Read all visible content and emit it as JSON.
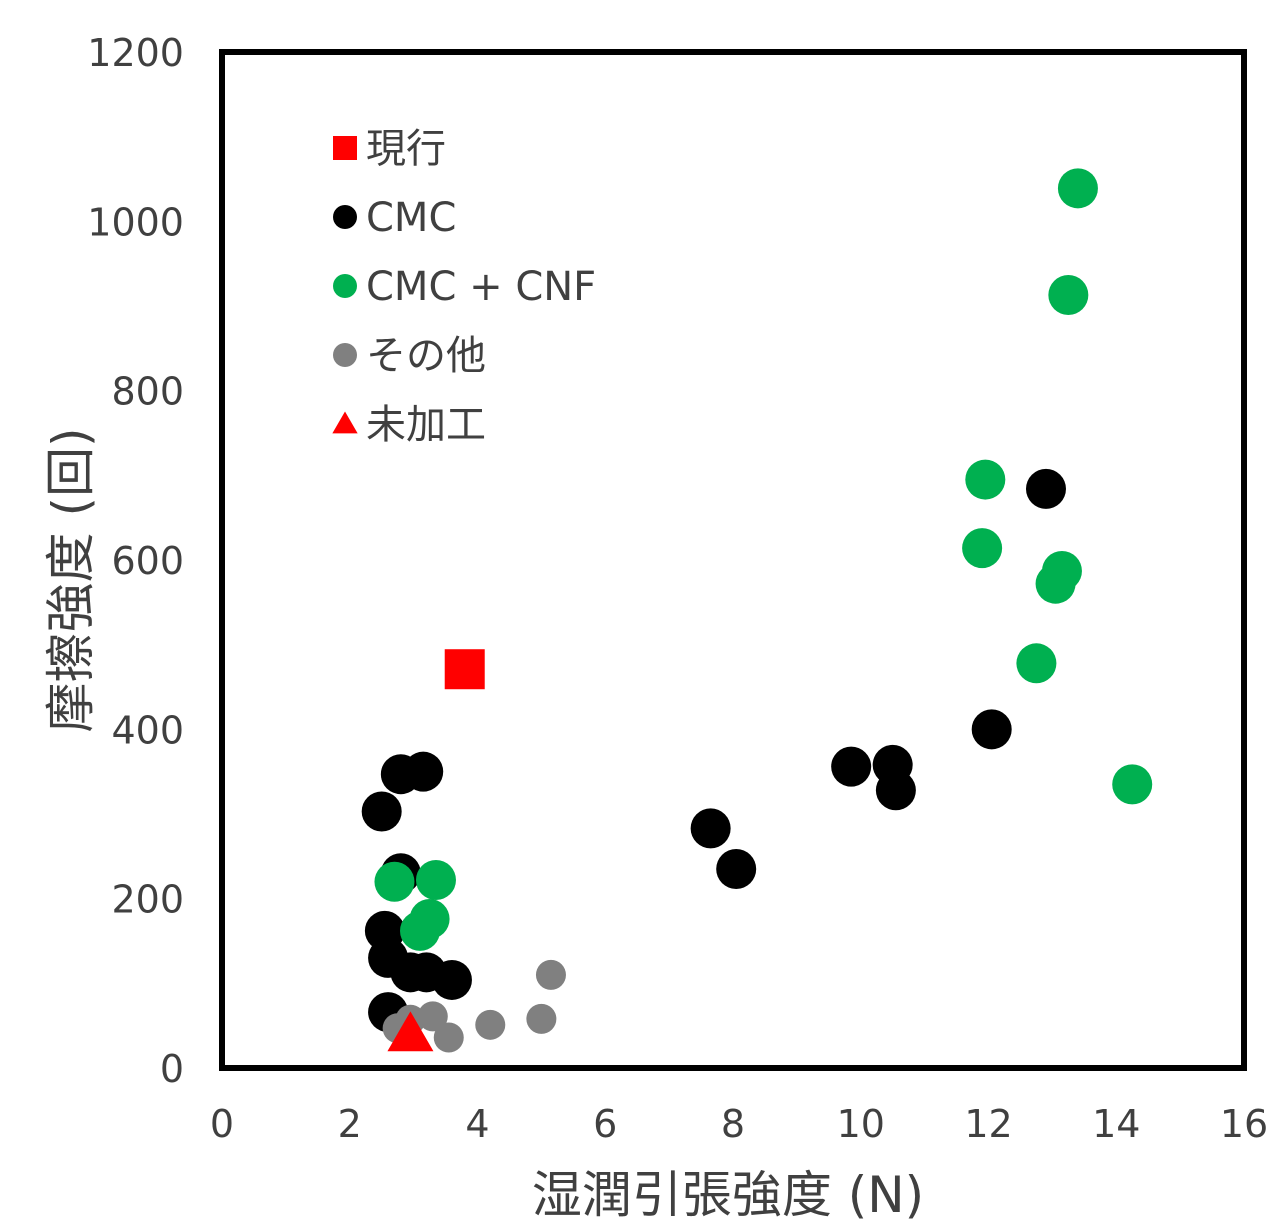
{
  "chart_data": {
    "type": "scatter",
    "xlabel": "湿潤引張強度 (N)",
    "ylabel": "摩擦強度 (回)",
    "xlim": [
      0,
      16
    ],
    "ylim": [
      0,
      1200
    ],
    "x_ticks": [
      0,
      2,
      4,
      6,
      8,
      10,
      12,
      14,
      16
    ],
    "y_ticks": [
      0,
      200,
      400,
      600,
      800,
      1000,
      1200
    ],
    "grid": false,
    "legend_position": "top-left",
    "series": [
      {
        "name": "CMC",
        "color": "#000000",
        "marker": "circle",
        "points": [
          {
            "x": 2.5,
            "y": 303
          },
          {
            "x": 2.8,
            "y": 347
          },
          {
            "x": 3.15,
            "y": 350
          },
          {
            "x": 2.8,
            "y": 230
          },
          {
            "x": 2.55,
            "y": 162
          },
          {
            "x": 2.6,
            "y": 130
          },
          {
            "x": 2.95,
            "y": 113
          },
          {
            "x": 3.2,
            "y": 113
          },
          {
            "x": 3.6,
            "y": 104
          },
          {
            "x": 2.6,
            "y": 66
          },
          {
            "x": 7.65,
            "y": 283
          },
          {
            "x": 8.05,
            "y": 235
          },
          {
            "x": 9.85,
            "y": 356
          },
          {
            "x": 10.5,
            "y": 358
          },
          {
            "x": 10.55,
            "y": 328
          },
          {
            "x": 12.05,
            "y": 400
          },
          {
            "x": 12.9,
            "y": 684
          }
        ]
      },
      {
        "name": "CMC + CNF",
        "color": "#00B050",
        "marker": "circle",
        "points": [
          {
            "x": 2.7,
            "y": 220
          },
          {
            "x": 3.35,
            "y": 222
          },
          {
            "x": 3.25,
            "y": 176
          },
          {
            "x": 3.1,
            "y": 162
          },
          {
            "x": 11.9,
            "y": 614
          },
          {
            "x": 11.95,
            "y": 695
          },
          {
            "x": 12.75,
            "y": 478
          },
          {
            "x": 13.05,
            "y": 572
          },
          {
            "x": 13.15,
            "y": 587
          },
          {
            "x": 13.25,
            "y": 913
          },
          {
            "x": 13.4,
            "y": 1039
          },
          {
            "x": 14.25,
            "y": 335
          }
        ]
      },
      {
        "name": "その他",
        "color": "#808080",
        "marker": "circle",
        "points": [
          {
            "x": 2.75,
            "y": 47
          },
          {
            "x": 2.95,
            "y": 57
          },
          {
            "x": 3.3,
            "y": 61
          },
          {
            "x": 3.55,
            "y": 36
          },
          {
            "x": 4.2,
            "y": 51
          },
          {
            "x": 5.0,
            "y": 58
          },
          {
            "x": 5.15,
            "y": 110
          }
        ]
      },
      {
        "name": "現行",
        "color": "#FF0000",
        "marker": "square",
        "points": [
          {
            "x": 3.8,
            "y": 471
          }
        ]
      },
      {
        "name": "未加工",
        "color": "#FF0000",
        "marker": "triangle",
        "points": [
          {
            "x": 2.95,
            "y": 40
          }
        ]
      }
    ],
    "legend": [
      {
        "label": "現行",
        "color": "#FF0000",
        "marker": "square"
      },
      {
        "label": "CMC",
        "color": "#000000",
        "marker": "circle"
      },
      {
        "label": "CMC + CNF",
        "color": "#00B050",
        "marker": "circle"
      },
      {
        "label": "その他",
        "color": "#808080",
        "marker": "circle"
      },
      {
        "label": "未加工",
        "color": "#FF0000",
        "marker": "triangle"
      }
    ]
  }
}
